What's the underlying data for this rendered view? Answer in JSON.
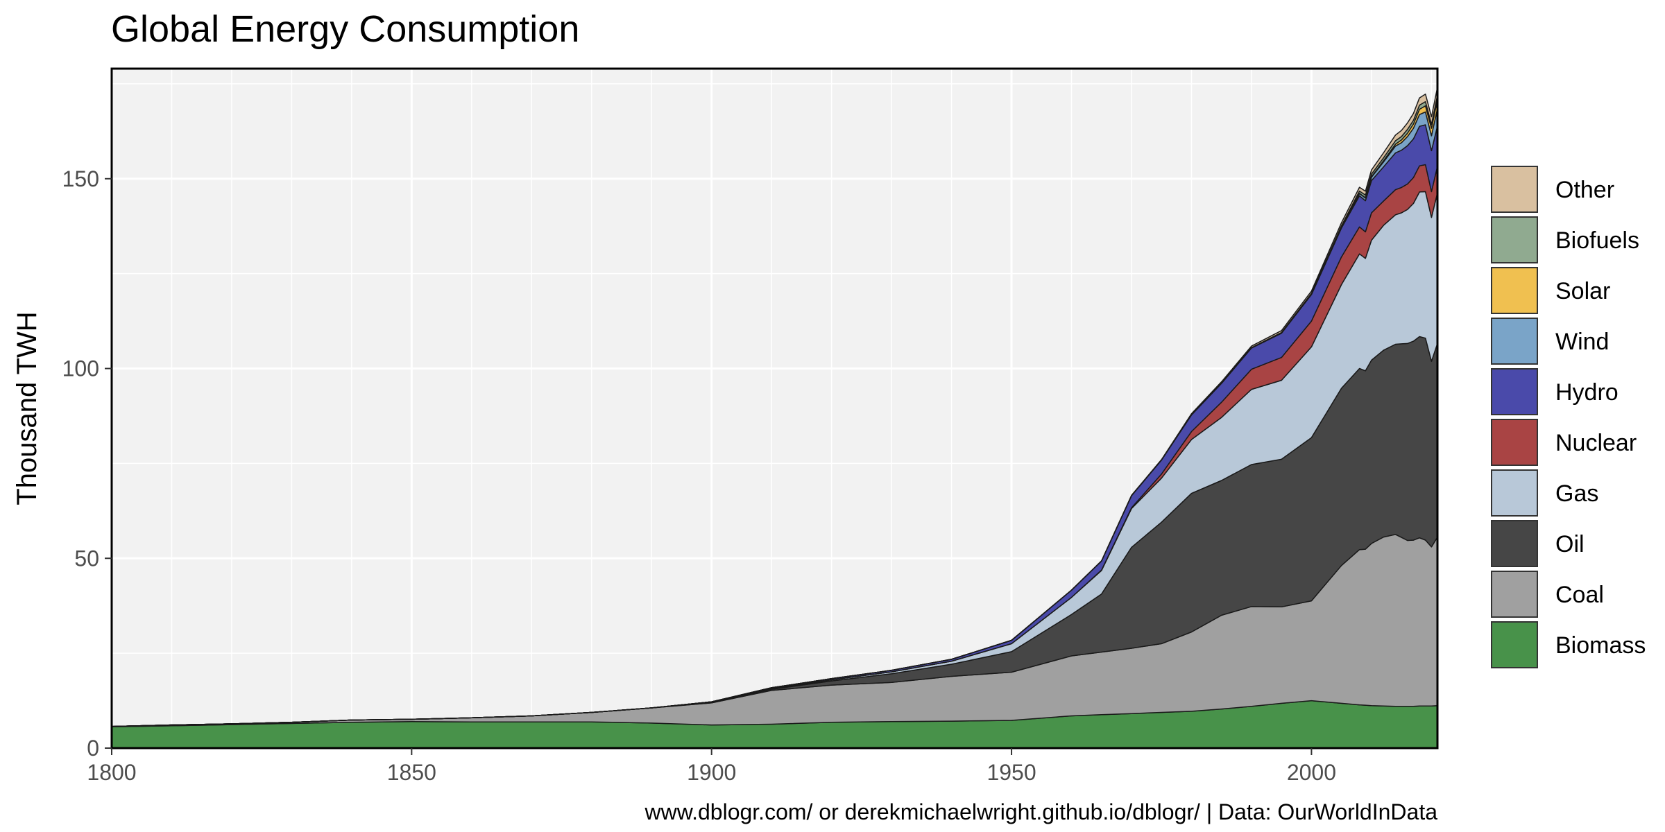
{
  "chart_data": {
    "type": "area",
    "stacked": true,
    "title": "Global Energy Consumption",
    "xlabel": "",
    "ylabel": "Thousand TWH",
    "caption": "www.dblogr.com/ or derekmichaelwright.github.io/dblogr/ | Data: OurWorldInData",
    "xlim": [
      1800,
      2021
    ],
    "ylim": [
      0,
      179
    ],
    "x_ticks": [
      1800,
      1850,
      1900,
      1950,
      2000
    ],
    "y_ticks": [
      0,
      50,
      100,
      150
    ],
    "grid": true,
    "legend_position": "right",
    "x": [
      1800,
      1810,
      1820,
      1830,
      1840,
      1850,
      1860,
      1870,
      1880,
      1890,
      1900,
      1910,
      1920,
      1930,
      1940,
      1950,
      1960,
      1965,
      1970,
      1975,
      1980,
      1985,
      1990,
      1995,
      2000,
      2005,
      2008,
      2009,
      2010,
      2012,
      2014,
      2015,
      2016,
      2017,
      2018,
      2019,
      2020,
      2021
    ],
    "series": [
      {
        "name": "Biomass",
        "color": "#48924a",
        "values": [
          5.6,
          5.9,
          6.2,
          6.5,
          6.8,
          7.0,
          6.9,
          6.9,
          6.9,
          6.6,
          6.1,
          6.3,
          6.8,
          7.0,
          7.1,
          7.3,
          8.5,
          8.8,
          9.1,
          9.4,
          9.7,
          10.3,
          11.0,
          11.8,
          12.5,
          11.8,
          11.4,
          11.3,
          11.2,
          11.1,
          11.0,
          11.0,
          11.0,
          11.0,
          11.1,
          11.1,
          11.1,
          11.2
        ]
      },
      {
        "name": "Coal",
        "color": "#a0a0a0",
        "values": [
          0.1,
          0.2,
          0.2,
          0.3,
          0.6,
          0.6,
          1.1,
          1.6,
          2.5,
          4.0,
          5.8,
          8.9,
          9.8,
          10.3,
          11.8,
          12.7,
          15.8,
          16.5,
          17.2,
          18.1,
          20.9,
          24.7,
          26.3,
          25.4,
          26.3,
          36.3,
          40.9,
          41.1,
          42.7,
          44.5,
          45.3,
          44.5,
          43.7,
          43.8,
          44.3,
          43.7,
          41.9,
          44.4
        ]
      },
      {
        "name": "Oil",
        "color": "#464646",
        "values": [
          0.0,
          0.0,
          0.0,
          0.0,
          0.0,
          0.0,
          0.0,
          0.0,
          0.0,
          0.0,
          0.2,
          0.3,
          1.1,
          2.3,
          3.2,
          5.4,
          10.9,
          15.3,
          26.6,
          32.0,
          36.5,
          35.5,
          37.4,
          38.9,
          43.0,
          46.7,
          47.7,
          47.0,
          48.3,
          49.2,
          50.1,
          51.0,
          51.9,
          52.4,
          53.0,
          53.2,
          48.9,
          51.0
        ]
      },
      {
        "name": "Gas",
        "color": "#b8c8d8",
        "values": [
          0.0,
          0.0,
          0.0,
          0.0,
          0.0,
          0.0,
          0.0,
          0.0,
          0.0,
          0.0,
          0.1,
          0.2,
          0.3,
          0.5,
          0.8,
          2.1,
          4.5,
          6.2,
          10.2,
          11.6,
          14.2,
          16.6,
          19.8,
          20.8,
          23.9,
          27.3,
          30.2,
          29.6,
          31.6,
          32.9,
          34.1,
          34.5,
          35.3,
          36.3,
          38.1,
          38.6,
          37.9,
          39.7
        ]
      },
      {
        "name": "Nuclear",
        "color": "#a94444",
        "values": [
          0.0,
          0.0,
          0.0,
          0.0,
          0.0,
          0.0,
          0.0,
          0.0,
          0.0,
          0.0,
          0.0,
          0.0,
          0.0,
          0.0,
          0.0,
          0.0,
          0.0,
          0.1,
          0.2,
          1.1,
          2.1,
          4.0,
          5.3,
          6.0,
          6.8,
          7.3,
          7.1,
          7.0,
          7.2,
          6.4,
          6.6,
          6.7,
          6.7,
          6.8,
          6.9,
          7.1,
          6.8,
          7.0
        ]
      },
      {
        "name": "Hydro",
        "color": "#4a4aaa",
        "values": [
          0.0,
          0.0,
          0.0,
          0.0,
          0.0,
          0.0,
          0.0,
          0.0,
          0.0,
          0.0,
          0.0,
          0.2,
          0.3,
          0.4,
          0.5,
          0.9,
          1.9,
          2.4,
          3.2,
          3.7,
          4.4,
          5.0,
          5.6,
          6.4,
          7.0,
          7.6,
          8.2,
          8.2,
          8.5,
          9.0,
          9.7,
          9.8,
          10.1,
          10.2,
          10.4,
          10.5,
          10.8,
          10.6
        ]
      },
      {
        "name": "Wind",
        "color": "#7aa4c8",
        "values": [
          0,
          0,
          0,
          0,
          0,
          0,
          0,
          0,
          0,
          0,
          0,
          0,
          0,
          0,
          0,
          0,
          0,
          0,
          0,
          0,
          0,
          0,
          0,
          0,
          0.1,
          0.3,
          0.6,
          0.7,
          0.9,
          1.3,
          1.8,
          2.0,
          2.4,
          2.8,
          3.1,
          3.4,
          3.9,
          4.6
        ]
      },
      {
        "name": "Solar",
        "color": "#f0c050",
        "values": [
          0,
          0,
          0,
          0,
          0,
          0,
          0,
          0,
          0,
          0,
          0,
          0,
          0,
          0,
          0,
          0,
          0,
          0,
          0,
          0,
          0,
          0,
          0,
          0,
          0,
          0,
          0.05,
          0.1,
          0.1,
          0.3,
          0.5,
          0.7,
          0.9,
          1.1,
          1.4,
          1.6,
          2.0,
          2.4
        ]
      },
      {
        "name": "Biofuels",
        "color": "#90aa90",
        "values": [
          0,
          0,
          0,
          0,
          0,
          0,
          0,
          0,
          0,
          0,
          0,
          0,
          0,
          0,
          0,
          0,
          0,
          0,
          0,
          0,
          0.1,
          0.1,
          0.1,
          0.2,
          0.2,
          0.3,
          0.6,
          0.7,
          0.7,
          0.8,
          0.9,
          0.9,
          1.0,
          1.0,
          1.1,
          1.1,
          1.0,
          1.1
        ]
      },
      {
        "name": "Other",
        "color": "#d9c0a0",
        "values": [
          0,
          0,
          0,
          0,
          0,
          0,
          0,
          0,
          0,
          0,
          0,
          0,
          0,
          0,
          0,
          0,
          0,
          0,
          0.1,
          0.1,
          0.2,
          0.3,
          0.4,
          0.5,
          0.6,
          0.8,
          1.0,
          1.0,
          1.1,
          1.3,
          1.5,
          1.6,
          1.7,
          1.8,
          1.9,
          2.0,
          2.0,
          2.1
        ]
      }
    ]
  }
}
